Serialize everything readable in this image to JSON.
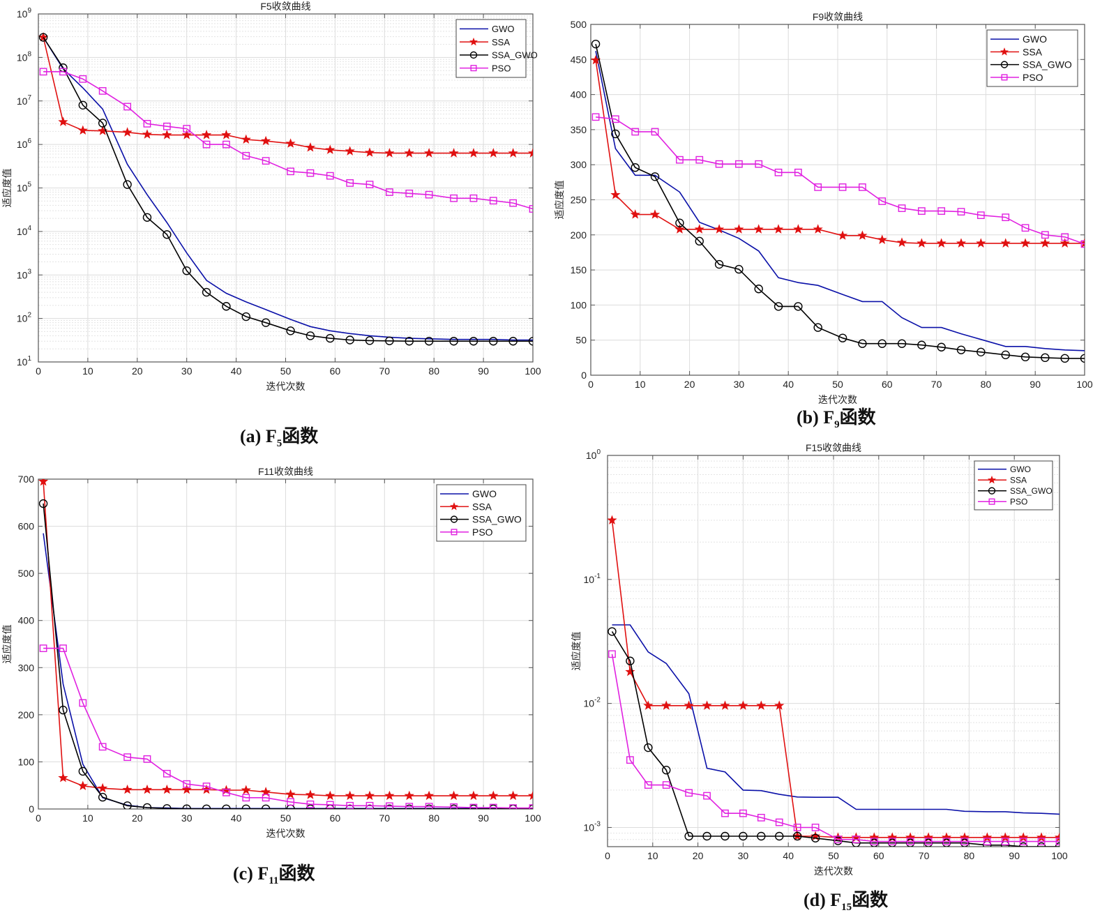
{
  "colors": {
    "GWO": "#0a10a8",
    "SSA": "#e01010",
    "SSA_GWO": "#000000",
    "PSO": "#e020e0",
    "grid": "#dcdcdc",
    "axis": "#555555"
  },
  "captions": [
    {
      "prefix": "(a) F",
      "sub": "5",
      "suffix": "函数"
    },
    {
      "prefix": "(b) F",
      "sub": "9",
      "suffix": "函数"
    },
    {
      "prefix": "(c) F",
      "sub": "11",
      "suffix": "函数"
    },
    {
      "prefix": "(d) F",
      "sub": "15",
      "suffix": "函数"
    }
  ],
  "chart_data": [
    {
      "type": "line",
      "title": "F5收敛曲线",
      "xlabel": "迭代次数",
      "ylabel": "适应度值",
      "yscale": "log",
      "xlim": [
        0,
        100
      ],
      "ylim": [
        10,
        1000000000
      ],
      "xticks": [
        0,
        10,
        20,
        30,
        40,
        50,
        60,
        70,
        80,
        90,
        100
      ],
      "yticks": [
        {
          "base": "10",
          "exp": "1",
          "v": 10
        },
        {
          "base": "10",
          "exp": "2",
          "v": 100
        },
        {
          "base": "10",
          "exp": "3",
          "v": 1000
        },
        {
          "base": "10",
          "exp": "4",
          "v": 10000
        },
        {
          "base": "10",
          "exp": "5",
          "v": 100000
        },
        {
          "base": "10",
          "exp": "6",
          "v": 1000000
        },
        {
          "base": "10",
          "exp": "7",
          "v": 10000000
        },
        {
          "base": "10",
          "exp": "8",
          "v": 100000000
        },
        {
          "base": "10",
          "exp": "9",
          "v": 1000000000
        }
      ],
      "grid": true,
      "legend": "top-right",
      "x": [
        1,
        5,
        9,
        13,
        18,
        22,
        26,
        30,
        34,
        38,
        42,
        46,
        51,
        55,
        59,
        63,
        67,
        71,
        75,
        79,
        84,
        88,
        92,
        96,
        100
      ],
      "series": [
        {
          "name": "GWO",
          "marker": "none",
          "values": [
            290000000.0,
            55000000.0,
            20000000.0,
            6500000.0,
            350000.0,
            70000.0,
            16000.0,
            3200.0,
            750.0,
            380.0,
            240.0,
            160.0,
            95.0,
            65.0,
            52.0,
            45.0,
            40.0,
            37.0,
            35.0,
            34.0,
            33.0,
            33.0,
            33.0,
            32.0,
            32.0
          ]
        },
        {
          "name": "SSA",
          "marker": "star",
          "values": [
            290000000.0,
            3300000.0,
            2100000.0,
            2050000.0,
            1900000.0,
            1700000.0,
            1650000.0,
            1650000.0,
            1650000.0,
            1650000.0,
            1300000.0,
            1200000.0,
            1050000.0,
            850000.0,
            750000.0,
            700000.0,
            650000.0,
            630000.0,
            630000.0,
            630000.0,
            630000.0,
            630000.0,
            630000.0,
            630000.0,
            630000.0
          ]
        },
        {
          "name": "SSA_GWO",
          "marker": "circle",
          "values": [
            290000000.0,
            58000000.0,
            8000000.0,
            3100000.0,
            120000.0,
            21000.0,
            8500.0,
            1250.0,
            400.0,
            190.0,
            110.0,
            80.0,
            52.0,
            40.0,
            35.0,
            32.0,
            31.0,
            30.5,
            30.0,
            30.0,
            30.0,
            30.0,
            30.0,
            30.0,
            30.0
          ]
        },
        {
          "name": "PSO",
          "marker": "square",
          "values": [
            47000000.0,
            47000000.0,
            32000000.0,
            17000000.0,
            7400000.0,
            3000000.0,
            2600000.0,
            2300000.0,
            1000000.0,
            1000000.0,
            550000.0,
            420000.0,
            240000.0,
            220000.0,
            190000.0,
            130000.0,
            120000.0,
            80000.0,
            75000.0,
            70000.0,
            58000.0,
            58000.0,
            51000.0,
            45000.0,
            33000.0
          ]
        }
      ]
    },
    {
      "type": "line",
      "title": "F9收敛曲线",
      "xlabel": "迭代次数",
      "ylabel": "适应度值",
      "yscale": "linear",
      "xlim": [
        0,
        100
      ],
      "ylim": [
        0,
        500
      ],
      "xticks": [
        0,
        10,
        20,
        30,
        40,
        50,
        60,
        70,
        80,
        90,
        100
      ],
      "yticks": [
        {
          "base": "0",
          "v": 0
        },
        {
          "base": "50",
          "v": 50
        },
        {
          "base": "100",
          "v": 100
        },
        {
          "base": "150",
          "v": 150
        },
        {
          "base": "200",
          "v": 200
        },
        {
          "base": "250",
          "v": 250
        },
        {
          "base": "300",
          "v": 300
        },
        {
          "base": "350",
          "v": 350
        },
        {
          "base": "400",
          "v": 400
        },
        {
          "base": "450",
          "v": 450
        },
        {
          "base": "500",
          "v": 500
        }
      ],
      "grid": true,
      "legend": "top-right",
      "x": [
        1,
        5,
        9,
        13,
        18,
        22,
        26,
        30,
        34,
        38,
        42,
        46,
        51,
        55,
        59,
        63,
        67,
        71,
        75,
        79,
        84,
        88,
        92,
        96,
        100
      ],
      "series": [
        {
          "name": "GWO",
          "marker": "none",
          "values": [
            462,
            323,
            285,
            285,
            261,
            218,
            207,
            195,
            177,
            139,
            132,
            128,
            115,
            105,
            105,
            82,
            68,
            68,
            59,
            51,
            41,
            41,
            38,
            36,
            35
          ]
        },
        {
          "name": "SSA",
          "marker": "star",
          "values": [
            449,
            257,
            229,
            229,
            208,
            208,
            208,
            208,
            208,
            208,
            208,
            208,
            199,
            199,
            193,
            189,
            188,
            188,
            188,
            188,
            188,
            188,
            188,
            188,
            188
          ]
        },
        {
          "name": "SSA_GWO",
          "marker": "circle",
          "values": [
            472,
            344,
            296,
            283,
            217,
            191,
            158,
            151,
            123,
            98,
            98,
            68,
            53,
            45,
            45,
            45,
            43,
            40,
            36,
            33,
            29,
            26,
            25,
            24,
            24
          ]
        },
        {
          "name": "PSO",
          "marker": "square",
          "values": [
            368,
            365,
            347,
            347,
            307,
            307,
            301,
            301,
            301,
            289,
            289,
            268,
            268,
            268,
            248,
            238,
            234,
            234,
            233,
            228,
            225,
            210,
            200,
            197,
            187
          ]
        }
      ]
    },
    {
      "type": "line",
      "title": "F11收敛曲线",
      "xlabel": "迭代次数",
      "ylabel": "适应度值",
      "yscale": "linear",
      "xlim": [
        0,
        100
      ],
      "ylim": [
        0,
        700
      ],
      "xticks": [
        0,
        10,
        20,
        30,
        40,
        50,
        60,
        70,
        80,
        90,
        100
      ],
      "yticks": [
        {
          "base": "0",
          "v": 0
        },
        {
          "base": "100",
          "v": 100
        },
        {
          "base": "200",
          "v": 200
        },
        {
          "base": "300",
          "v": 300
        },
        {
          "base": "400",
          "v": 400
        },
        {
          "base": "500",
          "v": 500
        },
        {
          "base": "600",
          "v": 600
        },
        {
          "base": "700",
          "v": 700
        }
      ],
      "grid": true,
      "legend": "top-right",
      "x": [
        1,
        5,
        9,
        13,
        18,
        22,
        26,
        30,
        34,
        38,
        42,
        46,
        51,
        55,
        59,
        63,
        67,
        71,
        75,
        79,
        84,
        88,
        92,
        96,
        100
      ],
      "series": [
        {
          "name": "GWO",
          "marker": "none",
          "values": [
            585,
            265,
            95,
            24,
            8,
            3,
            2,
            1,
            1,
            1,
            1,
            1,
            1,
            1,
            1,
            1,
            1,
            1,
            1,
            1,
            1,
            1,
            1,
            1,
            1
          ]
        },
        {
          "name": "SSA",
          "marker": "star",
          "values": [
            695,
            66,
            49,
            44,
            41,
            41,
            41,
            41,
            41,
            40,
            40,
            36,
            31,
            30,
            28,
            28,
            28,
            28,
            28,
            28,
            28,
            28,
            28,
            28,
            28
          ]
        },
        {
          "name": "SSA_GWO",
          "marker": "circle",
          "values": [
            648,
            210,
            80,
            25,
            7,
            3,
            1,
            0.5,
            0.3,
            0.3,
            0.3,
            0.3,
            0.3,
            0.3,
            0.3,
            0.3,
            0.3,
            0.3,
            0.3,
            0.3,
            0.3,
            0.3,
            0.3,
            0.3,
            0.3
          ]
        },
        {
          "name": "PSO",
          "marker": "square",
          "values": [
            341,
            341,
            225,
            132,
            110,
            106,
            75,
            53,
            48,
            35,
            24,
            24,
            15,
            10,
            9,
            7,
            7,
            6,
            5,
            5,
            4,
            3,
            3,
            2,
            2
          ]
        }
      ]
    },
    {
      "type": "line",
      "title": "F15收敛曲线",
      "xlabel": "迭代次数",
      "ylabel": "适应度值",
      "yscale": "log",
      "xlim": [
        0,
        100
      ],
      "ylim": [
        0.0007,
        1
      ],
      "xticks": [
        0,
        10,
        20,
        30,
        40,
        50,
        60,
        70,
        80,
        90,
        100
      ],
      "yticks": [
        {
          "base": "10",
          "exp": "-3",
          "v": 0.001
        },
        {
          "base": "10",
          "exp": "-2",
          "v": 0.01
        },
        {
          "base": "10",
          "exp": "-1",
          "v": 0.1
        },
        {
          "base": "10",
          "exp": "0",
          "v": 1
        }
      ],
      "grid": true,
      "legend": "top-right",
      "x": [
        1,
        5,
        9,
        13,
        18,
        22,
        26,
        30,
        34,
        38,
        42,
        46,
        51,
        55,
        59,
        63,
        67,
        71,
        75,
        79,
        84,
        88,
        92,
        96,
        100
      ],
      "series": [
        {
          "name": "GWO",
          "marker": "none",
          "values": [
            0.043,
            0.043,
            0.026,
            0.021,
            0.012,
            0.003,
            0.0028,
            0.002,
            0.00198,
            0.00185,
            0.00176,
            0.00175,
            0.00175,
            0.0014,
            0.0014,
            0.0014,
            0.0014,
            0.0014,
            0.0014,
            0.00135,
            0.00134,
            0.00134,
            0.00131,
            0.0013,
            0.00128
          ]
        },
        {
          "name": "SSA",
          "marker": "star",
          "values": [
            0.3,
            0.018,
            0.0096,
            0.0096,
            0.0096,
            0.0096,
            0.0096,
            0.0096,
            0.0096,
            0.0096,
            0.00085,
            0.00085,
            0.00083,
            0.00083,
            0.00083,
            0.00083,
            0.00083,
            0.00083,
            0.00083,
            0.00083,
            0.00083,
            0.00083,
            0.00083,
            0.00083,
            0.00083
          ]
        },
        {
          "name": "SSA_GWO",
          "marker": "circle",
          "values": [
            0.038,
            0.022,
            0.0044,
            0.0029,
            0.00085,
            0.00085,
            0.00085,
            0.00085,
            0.00085,
            0.00085,
            0.00085,
            0.00082,
            0.00078,
            0.00075,
            0.00075,
            0.00075,
            0.00075,
            0.00075,
            0.00075,
            0.00075,
            0.00072,
            0.00072,
            0.0007,
            0.0007,
            0.0007
          ]
        },
        {
          "name": "PSO",
          "marker": "square",
          "values": [
            0.025,
            0.0035,
            0.0022,
            0.0022,
            0.0019,
            0.0018,
            0.0013,
            0.0013,
            0.0012,
            0.0011,
            0.001,
            0.001,
            0.0008,
            0.0008,
            0.00077,
            0.00077,
            0.00077,
            0.00077,
            0.00077,
            0.00077,
            0.00077,
            0.00077,
            0.00077,
            0.00077,
            0.00077
          ]
        }
      ]
    }
  ]
}
